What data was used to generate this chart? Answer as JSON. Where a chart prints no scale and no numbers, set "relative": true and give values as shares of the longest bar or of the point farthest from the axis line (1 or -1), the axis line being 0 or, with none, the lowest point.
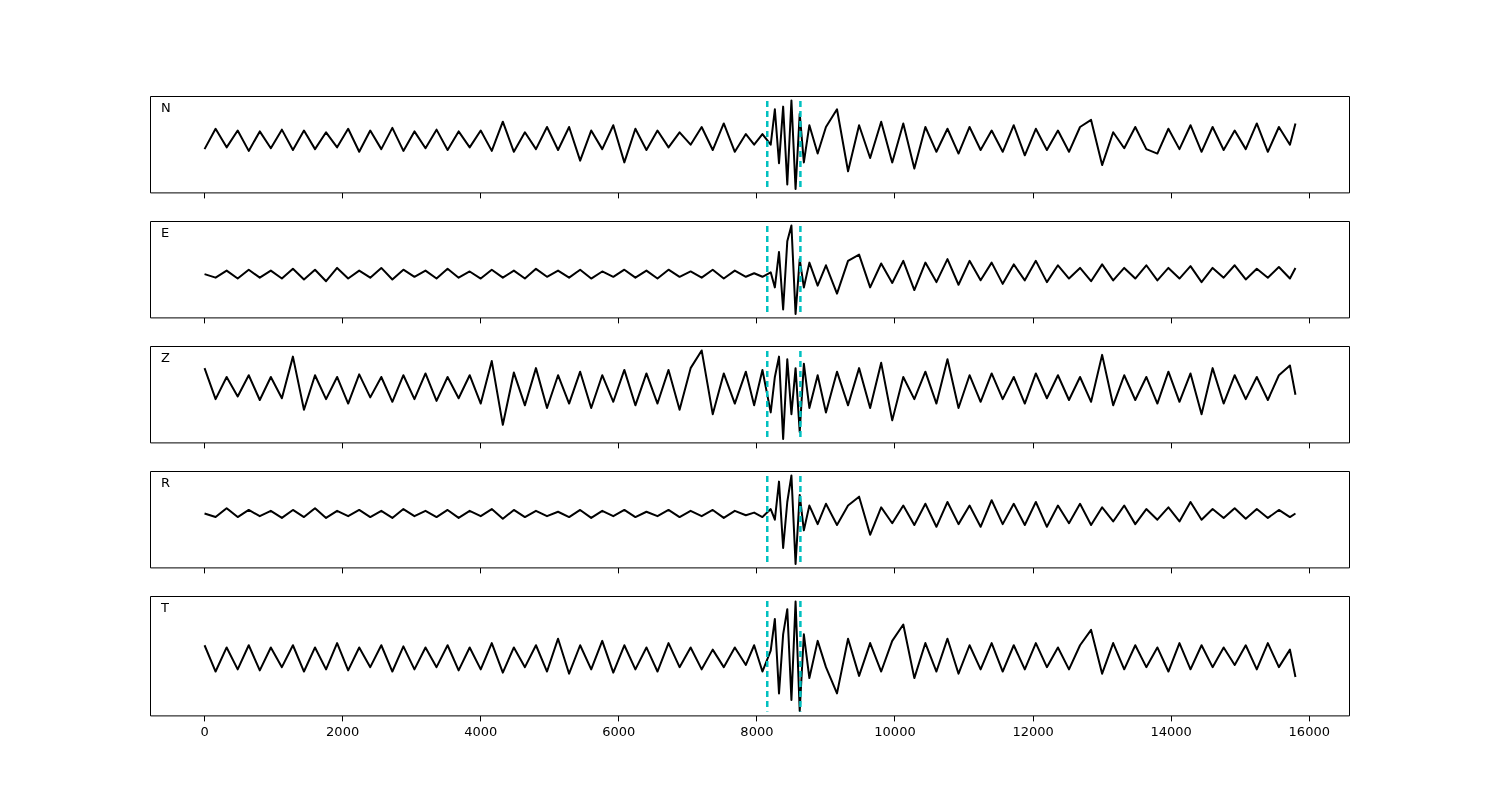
{
  "chart_data": [
    {
      "type": "line",
      "relative": true,
      "annotations": [
        "N"
      ],
      "xlim": [
        -790,
        16590
      ],
      "xticks": [
        0,
        2000,
        4000,
        6000,
        8000,
        10000,
        12000,
        14000,
        16000
      ],
      "tick_labels": false,
      "legend": false,
      "grid": false,
      "line_style": "solid",
      "ref_lines": [
        {
          "axis": "x",
          "value": 8150,
          "color": "#00c0c0",
          "line_style": "dashed"
        },
        {
          "axis": "x",
          "value": 8630,
          "color": "#00c0c0",
          "line_style": "dashed"
        }
      ],
      "x": [
        0,
        160,
        320,
        480,
        640,
        800,
        960,
        1120,
        1280,
        1440,
        1600,
        1760,
        1920,
        2080,
        2240,
        2400,
        2560,
        2720,
        2880,
        3040,
        3200,
        3360,
        3520,
        3680,
        3840,
        4000,
        4160,
        4320,
        4480,
        4640,
        4800,
        4960,
        5120,
        5280,
        5440,
        5600,
        5760,
        5920,
        6080,
        6240,
        6400,
        6560,
        6720,
        6880,
        7040,
        7200,
        7360,
        7520,
        7680,
        7840,
        7960,
        8080,
        8200,
        8260,
        8320,
        8380,
        8440,
        8500,
        8560,
        8620,
        8680,
        8760,
        8880,
        9000,
        9160,
        9320,
        9480,
        9640,
        9800,
        9960,
        10120,
        10280,
        10440,
        10600,
        10760,
        10920,
        11080,
        11240,
        11400,
        11560,
        11720,
        11880,
        12040,
        12200,
        12360,
        12520,
        12680,
        12840,
        13000,
        13160,
        13320,
        13480,
        13640,
        13800,
        13960,
        14120,
        14280,
        14440,
        14600,
        14760,
        14920,
        15080,
        15240,
        15400,
        15560,
        15720,
        15800
      ],
      "series": [
        {
          "color": "#000000",
          "values": [
            0.45,
            0.68,
            0.47,
            0.66,
            0.43,
            0.65,
            0.46,
            0.67,
            0.44,
            0.66,
            0.45,
            0.64,
            0.47,
            0.68,
            0.42,
            0.66,
            0.45,
            0.69,
            0.43,
            0.65,
            0.46,
            0.67,
            0.44,
            0.65,
            0.47,
            0.66,
            0.43,
            0.76,
            0.42,
            0.64,
            0.45,
            0.7,
            0.44,
            0.7,
            0.32,
            0.66,
            0.45,
            0.72,
            0.3,
            0.68,
            0.44,
            0.66,
            0.47,
            0.64,
            0.5,
            0.7,
            0.44,
            0.74,
            0.42,
            0.62,
            0.5,
            0.62,
            0.5,
            0.9,
            0.29,
            0.93,
            0.05,
            1.0,
            0.0,
            0.85,
            0.3,
            0.72,
            0.4,
            0.7,
            0.9,
            0.2,
            0.72,
            0.35,
            0.76,
            0.3,
            0.74,
            0.23,
            0.7,
            0.42,
            0.68,
            0.4,
            0.7,
            0.44,
            0.66,
            0.42,
            0.72,
            0.38,
            0.68,
            0.44,
            0.66,
            0.42,
            0.7,
            0.78,
            0.27,
            0.64,
            0.46,
            0.7,
            0.45,
            0.4,
            0.68,
            0.45,
            0.72,
            0.42,
            0.7,
            0.44,
            0.66,
            0.45,
            0.74,
            0.42,
            0.7,
            0.5,
            0.74
          ]
        }
      ]
    },
    {
      "type": "line",
      "relative": true,
      "annotations": [
        "E"
      ],
      "xlim": [
        -790,
        16590
      ],
      "xticks": [
        0,
        2000,
        4000,
        6000,
        8000,
        10000,
        12000,
        14000,
        16000
      ],
      "tick_labels": false,
      "legend": false,
      "grid": false,
      "line_style": "solid",
      "ref_lines": [
        {
          "axis": "x",
          "value": 8150,
          "color": "#00c0c0",
          "line_style": "dashed"
        },
        {
          "axis": "x",
          "value": 8630,
          "color": "#00c0c0",
          "line_style": "dashed"
        }
      ],
      "x": [
        0,
        160,
        320,
        480,
        640,
        800,
        960,
        1120,
        1280,
        1440,
        1600,
        1760,
        1920,
        2080,
        2240,
        2400,
        2560,
        2720,
        2880,
        3040,
        3200,
        3360,
        3520,
        3680,
        3840,
        4000,
        4160,
        4320,
        4480,
        4640,
        4800,
        4960,
        5120,
        5280,
        5440,
        5600,
        5760,
        5920,
        6080,
        6240,
        6400,
        6560,
        6720,
        6880,
        7040,
        7200,
        7360,
        7520,
        7680,
        7840,
        7960,
        8080,
        8200,
        8260,
        8320,
        8380,
        8440,
        8500,
        8560,
        8620,
        8680,
        8760,
        8880,
        9000,
        9160,
        9320,
        9480,
        9640,
        9800,
        9960,
        10120,
        10280,
        10440,
        10600,
        10760,
        10920,
        11080,
        11240,
        11400,
        11560,
        11720,
        11880,
        12040,
        12200,
        12360,
        12520,
        12680,
        12840,
        13000,
        13160,
        13320,
        13480,
        13640,
        13800,
        13960,
        14120,
        14280,
        14440,
        14600,
        14760,
        14920,
        15080,
        15240,
        15400,
        15560,
        15720,
        15800
      ],
      "series": [
        {
          "color": "#000000",
          "values": [
            0.45,
            0.41,
            0.49,
            0.4,
            0.5,
            0.41,
            0.49,
            0.4,
            0.51,
            0.39,
            0.5,
            0.37,
            0.52,
            0.4,
            0.49,
            0.41,
            0.52,
            0.39,
            0.5,
            0.42,
            0.49,
            0.4,
            0.51,
            0.41,
            0.48,
            0.4,
            0.5,
            0.41,
            0.49,
            0.4,
            0.51,
            0.42,
            0.49,
            0.41,
            0.5,
            0.4,
            0.48,
            0.42,
            0.5,
            0.41,
            0.49,
            0.4,
            0.5,
            0.42,
            0.48,
            0.41,
            0.5,
            0.4,
            0.49,
            0.42,
            0.46,
            0.42,
            0.47,
            0.3,
            0.7,
            0.05,
            0.82,
            1.0,
            0.0,
            0.62,
            0.3,
            0.58,
            0.32,
            0.55,
            0.23,
            0.6,
            0.67,
            0.3,
            0.57,
            0.35,
            0.6,
            0.27,
            0.58,
            0.36,
            0.62,
            0.33,
            0.6,
            0.38,
            0.58,
            0.34,
            0.56,
            0.38,
            0.6,
            0.36,
            0.55,
            0.4,
            0.52,
            0.37,
            0.56,
            0.38,
            0.52,
            0.4,
            0.55,
            0.38,
            0.52,
            0.4,
            0.54,
            0.36,
            0.52,
            0.41,
            0.55,
            0.39,
            0.51,
            0.41,
            0.53,
            0.4,
            0.52
          ]
        }
      ]
    },
    {
      "type": "line",
      "relative": true,
      "annotations": [
        "Z"
      ],
      "xlim": [
        -790,
        16590
      ],
      "xticks": [
        0,
        2000,
        4000,
        6000,
        8000,
        10000,
        12000,
        14000,
        16000
      ],
      "tick_labels": false,
      "legend": false,
      "grid": false,
      "line_style": "solid",
      "ref_lines": [
        {
          "axis": "x",
          "value": 8150,
          "color": "#00c0c0",
          "line_style": "dashed"
        },
        {
          "axis": "x",
          "value": 8630,
          "color": "#00c0c0",
          "line_style": "dashed"
        }
      ],
      "x": [
        0,
        160,
        320,
        480,
        640,
        800,
        960,
        1120,
        1280,
        1440,
        1600,
        1760,
        1920,
        2080,
        2240,
        2400,
        2560,
        2720,
        2880,
        3040,
        3200,
        3360,
        3520,
        3680,
        3840,
        4000,
        4160,
        4320,
        4480,
        4640,
        4800,
        4960,
        5120,
        5280,
        5440,
        5600,
        5760,
        5920,
        6080,
        6240,
        6400,
        6560,
        6720,
        6880,
        7040,
        7200,
        7360,
        7520,
        7680,
        7840,
        7960,
        8080,
        8200,
        8260,
        8320,
        8380,
        8440,
        8500,
        8560,
        8620,
        8680,
        8760,
        8880,
        9000,
        9160,
        9320,
        9480,
        9640,
        9800,
        9960,
        10120,
        10280,
        10440,
        10600,
        10760,
        10920,
        11080,
        11240,
        11400,
        11560,
        11720,
        11880,
        12040,
        12200,
        12360,
        12520,
        12680,
        12840,
        13000,
        13160,
        13320,
        13480,
        13640,
        13800,
        13960,
        14120,
        14280,
        14440,
        14600,
        14760,
        14920,
        15080,
        15240,
        15400,
        15560,
        15720,
        15800
      ],
      "series": [
        {
          "color": "#000000",
          "values": [
            0.8,
            0.45,
            0.7,
            0.48,
            0.72,
            0.44,
            0.7,
            0.46,
            0.93,
            0.33,
            0.72,
            0.45,
            0.7,
            0.4,
            0.73,
            0.47,
            0.7,
            0.42,
            0.72,
            0.45,
            0.74,
            0.43,
            0.7,
            0.46,
            0.72,
            0.4,
            0.88,
            0.16,
            0.75,
            0.38,
            0.8,
            0.35,
            0.72,
            0.4,
            0.76,
            0.35,
            0.72,
            0.42,
            0.78,
            0.38,
            0.74,
            0.4,
            0.78,
            0.33,
            0.8,
            1.0,
            0.28,
            0.74,
            0.4,
            0.76,
            0.38,
            0.78,
            0.3,
            0.7,
            0.93,
            0.0,
            0.9,
            0.28,
            0.8,
            0.08,
            0.85,
            0.35,
            0.72,
            0.3,
            0.76,
            0.38,
            0.8,
            0.35,
            0.86,
            0.21,
            0.7,
            0.45,
            0.76,
            0.4,
            0.9,
            0.35,
            0.72,
            0.42,
            0.74,
            0.45,
            0.7,
            0.4,
            0.74,
            0.46,
            0.72,
            0.44,
            0.7,
            0.42,
            0.95,
            0.38,
            0.72,
            0.44,
            0.7,
            0.4,
            0.76,
            0.42,
            0.74,
            0.28,
            0.8,
            0.4,
            0.72,
            0.45,
            0.7,
            0.44,
            0.72,
            0.83,
            0.5
          ]
        }
      ]
    },
    {
      "type": "line",
      "relative": true,
      "annotations": [
        "R"
      ],
      "xlim": [
        -790,
        16590
      ],
      "xticks": [
        0,
        2000,
        4000,
        6000,
        8000,
        10000,
        12000,
        14000,
        16000
      ],
      "tick_labels": false,
      "legend": false,
      "grid": false,
      "line_style": "solid",
      "ref_lines": [
        {
          "axis": "x",
          "value": 8150,
          "color": "#00c0c0",
          "line_style": "dashed"
        },
        {
          "axis": "x",
          "value": 8630,
          "color": "#00c0c0",
          "line_style": "dashed"
        }
      ],
      "x": [
        0,
        160,
        320,
        480,
        640,
        800,
        960,
        1120,
        1280,
        1440,
        1600,
        1760,
        1920,
        2080,
        2240,
        2400,
        2560,
        2720,
        2880,
        3040,
        3200,
        3360,
        3520,
        3680,
        3840,
        4000,
        4160,
        4320,
        4480,
        4640,
        4800,
        4960,
        5120,
        5280,
        5440,
        5600,
        5760,
        5920,
        6080,
        6240,
        6400,
        6560,
        6720,
        6880,
        7040,
        7200,
        7360,
        7520,
        7680,
        7840,
        7960,
        8080,
        8200,
        8260,
        8320,
        8380,
        8440,
        8500,
        8560,
        8620,
        8680,
        8760,
        8880,
        9000,
        9160,
        9320,
        9480,
        9640,
        9800,
        9960,
        10120,
        10280,
        10440,
        10600,
        10760,
        10920,
        11080,
        11240,
        11400,
        11560,
        11720,
        11880,
        12040,
        12200,
        12360,
        12520,
        12680,
        12840,
        13000,
        13160,
        13320,
        13480,
        13640,
        13800,
        13960,
        14120,
        14280,
        14440,
        14600,
        14760,
        14920,
        15080,
        15240,
        15400,
        15560,
        15720,
        15800
      ],
      "series": [
        {
          "color": "#000000",
          "values": [
            0.57,
            0.53,
            0.63,
            0.53,
            0.61,
            0.54,
            0.6,
            0.52,
            0.61,
            0.53,
            0.63,
            0.52,
            0.6,
            0.54,
            0.61,
            0.53,
            0.6,
            0.52,
            0.62,
            0.54,
            0.6,
            0.53,
            0.61,
            0.52,
            0.6,
            0.54,
            0.62,
            0.51,
            0.61,
            0.53,
            0.6,
            0.54,
            0.59,
            0.53,
            0.61,
            0.52,
            0.6,
            0.54,
            0.61,
            0.53,
            0.59,
            0.54,
            0.61,
            0.53,
            0.6,
            0.54,
            0.61,
            0.52,
            0.6,
            0.55,
            0.58,
            0.53,
            0.62,
            0.5,
            0.93,
            0.18,
            0.7,
            1.0,
            0.0,
            0.78,
            0.38,
            0.66,
            0.45,
            0.68,
            0.44,
            0.66,
            0.76,
            0.33,
            0.64,
            0.46,
            0.66,
            0.44,
            0.68,
            0.42,
            0.7,
            0.45,
            0.66,
            0.42,
            0.72,
            0.45,
            0.68,
            0.44,
            0.7,
            0.42,
            0.66,
            0.46,
            0.68,
            0.44,
            0.64,
            0.48,
            0.66,
            0.45,
            0.62,
            0.5,
            0.64,
            0.48,
            0.7,
            0.5,
            0.62,
            0.52,
            0.63,
            0.51,
            0.62,
            0.52,
            0.61,
            0.53,
            0.57
          ]
        }
      ]
    },
    {
      "type": "line",
      "relative": true,
      "annotations": [
        "T"
      ],
      "xlim": [
        -790,
        16590
      ],
      "xticks": [
        0,
        2000,
        4000,
        6000,
        8000,
        10000,
        12000,
        14000,
        16000
      ],
      "tick_labels": "x",
      "legend": false,
      "grid": false,
      "line_style": "solid",
      "ref_lines": [
        {
          "axis": "x",
          "value": 8150,
          "color": "#00c0c0",
          "line_style": "dashed"
        },
        {
          "axis": "x",
          "value": 8630,
          "color": "#00c0c0",
          "line_style": "dashed"
        }
      ],
      "x": [
        0,
        160,
        320,
        480,
        640,
        800,
        960,
        1120,
        1280,
        1440,
        1600,
        1760,
        1920,
        2080,
        2240,
        2400,
        2560,
        2720,
        2880,
        3040,
        3200,
        3360,
        3520,
        3680,
        3840,
        4000,
        4160,
        4320,
        4480,
        4640,
        4800,
        4960,
        5120,
        5280,
        5440,
        5600,
        5760,
        5920,
        6080,
        6240,
        6400,
        6560,
        6720,
        6880,
        7040,
        7200,
        7360,
        7520,
        7680,
        7840,
        7960,
        8080,
        8200,
        8260,
        8320,
        8380,
        8440,
        8500,
        8560,
        8620,
        8680,
        8760,
        8880,
        9000,
        9160,
        9320,
        9480,
        9640,
        9800,
        9960,
        10120,
        10280,
        10440,
        10600,
        10760,
        10920,
        11080,
        11240,
        11400,
        11560,
        11720,
        11880,
        12040,
        12200,
        12360,
        12520,
        12680,
        12840,
        13000,
        13160,
        13320,
        13480,
        13640,
        13800,
        13960,
        14120,
        14280,
        14440,
        14600,
        14760,
        14920,
        15080,
        15240,
        15400,
        15560,
        15720,
        15800
      ],
      "series": [
        {
          "color": "#000000",
          "values": [
            0.6,
            0.36,
            0.58,
            0.38,
            0.6,
            0.37,
            0.58,
            0.4,
            0.6,
            0.36,
            0.58,
            0.38,
            0.62,
            0.37,
            0.58,
            0.4,
            0.6,
            0.36,
            0.59,
            0.38,
            0.58,
            0.4,
            0.6,
            0.37,
            0.58,
            0.38,
            0.62,
            0.35,
            0.58,
            0.4,
            0.6,
            0.36,
            0.66,
            0.34,
            0.6,
            0.38,
            0.64,
            0.35,
            0.6,
            0.38,
            0.58,
            0.36,
            0.62,
            0.4,
            0.58,
            0.38,
            0.56,
            0.4,
            0.58,
            0.42,
            0.6,
            0.36,
            0.55,
            0.84,
            0.16,
            0.7,
            0.93,
            0.1,
            1.0,
            0.0,
            0.7,
            0.3,
            0.64,
            0.4,
            0.16,
            0.66,
            0.32,
            0.62,
            0.36,
            0.64,
            0.79,
            0.3,
            0.62,
            0.36,
            0.66,
            0.34,
            0.6,
            0.38,
            0.62,
            0.36,
            0.6,
            0.38,
            0.62,
            0.4,
            0.58,
            0.38,
            0.6,
            0.74,
            0.34,
            0.62,
            0.38,
            0.6,
            0.4,
            0.58,
            0.36,
            0.62,
            0.38,
            0.6,
            0.4,
            0.58,
            0.42,
            0.6,
            0.38,
            0.62,
            0.4,
            0.56,
            0.31
          ]
        }
      ]
    }
  ]
}
